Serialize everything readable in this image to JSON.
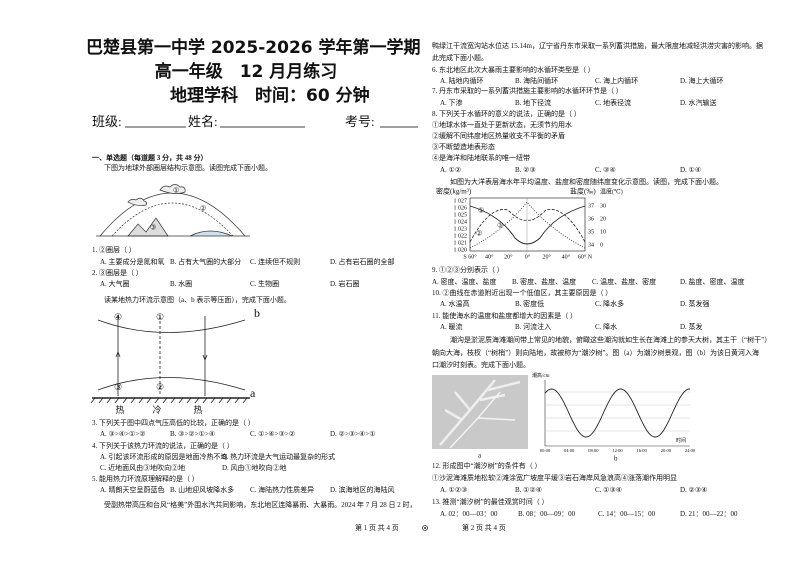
{
  "header": {
    "school_term": "巴楚县第一中学 2025-2026 学年第一学期",
    "grade": "高一年级　12 月月练习",
    "subject": "地理学科",
    "time": "时间：60 分钟",
    "class_label": "班级:",
    "name_label": "姓名:",
    "id_label": "考号:"
  },
  "section": {
    "title": "一、单选题（每道题 3 分，共 48 分）"
  },
  "passages": [
    {
      "lines": [
        "下图为地球外部圈层结构示意图。读图完成下面小题。"
      ]
    },
    {
      "lines": [
        "读某地热力环流示意图（a、b 表示等压面），完成下面小题。"
      ]
    },
    {
      "lines": [
        "受副热带高压和台风“格美”外围水汽共同影响，东北地区连降暴雨、大暴雨。2024 年 7 月 28 日 2 时，",
        "鸭绿江干流宽沟站水位达 15.14m，辽宁省丹东市采取一系列蓄洪措施，最大限度地减轻洪涝灾害的影响。据",
        "此完成下面小题。"
      ]
    },
    {
      "lines": [
        "如图为大洋表层海水年平均温度、盐度和密度随纬度变化示意图。读图，完成下面小题。"
      ]
    },
    {
      "lines": [
        "潮沟是淤泥质海滩潮间带上常见的地貌，俯瞰这些潮沟就如生长在海滩上的参天大树，其主干（“树干”）",
        "朝向大海，枝杈（“树梢”）则向陆地，故被称为“潮汐树”。图（a）为潮汐树景观，图（b）为该日黄河入海",
        "口潮汐时刻表。完成下面小题。"
      ]
    }
  ],
  "questions": [
    {
      "stem": "1. ②圈层（ ）",
      "options": [
        "A. 主要成分是氮和氧",
        "B. 占有大气圈的大部分",
        "C. 连续但不规则",
        "D. 占有岩石圈的全部"
      ]
    },
    {
      "stem": "2. ③圈层是（ ）",
      "options": [
        "A. 大气圈",
        "B. 水圈",
        "C. 生物圈",
        "D. 岩石圈"
      ]
    },
    {
      "stem": "3. 下列关于图中四点气压高低的比较，正确的是（ ）",
      "options": [
        "A. ③>④>①>②",
        "B. ③>②>①>④",
        "C. ①>④>③>②",
        "D. ②>③>④>①"
      ]
    },
    {
      "stem": "4. 下列关于该热力环流的说法，正确的是（ ）",
      "options": [
        "A. 引起该环流形成的原因是地面冷热不均",
        "B. 热力环流是大气运动最复杂的形式",
        "C. 近地面风由③地吹向②地",
        "D. 风由①地吹向②地"
      ]
    },
    {
      "stem": "5. 能用热力环流原理解释的是（ ）",
      "options": [
        "A. 晴朗天空呈蔚蓝色",
        "B. 山地迎风坡降水多",
        "C. 海陆热力性质差异",
        "D. 滨海地区的海陆风"
      ]
    },
    {
      "stem": "6. 东北地区此次大暴雨主要影响的水循环类型是（ ）",
      "options": [
        "A. 陆地内循环",
        "B. 海陆间循环",
        "C. 海上内循环",
        "D. 海上大循环"
      ]
    },
    {
      "stem": "7. 丹东市采取的一系列蓄洪措施主要影响的水循环环节是（ ）",
      "options": [
        "A. 下渗",
        "B. 地下径流",
        "C. 地表径流",
        "D. 水汽输送"
      ]
    },
    {
      "stem": "8. 下列关于水循环的意义的说法，正确的是（ ）",
      "statements": [
        "①地球水体一直处于更新状态，无须节约用水",
        "②缓解不同纬度地区热量收支不平衡的矛盾",
        "③不断塑造地表形态",
        "④是海洋和陆地联系的唯一纽带"
      ],
      "options": [
        "A. ①②",
        "B. ②③",
        "C. ③④",
        "D. ①④"
      ]
    },
    {
      "stem": "9. ①②③分别表示（ ）",
      "options": [
        "A. 密度、温度、盐度",
        "B. 密度、盐度、温度",
        "C. 温度、盐度、密度",
        "D. 盐度、密度、温度"
      ]
    },
    {
      "stem": "10. ②曲线在赤道附近出现一个低值区，其主要原因是（ ）",
      "options": [
        "A. 水温高",
        "B. 密度低",
        "C. 降水多",
        "D. 蒸发强"
      ]
    },
    {
      "stem": "11. 能使海水的温度和盐度都增大的因素是（ ）",
      "options": [
        "A. 暖流",
        "B. 河流注入",
        "C. 降水",
        "D. 蒸发"
      ]
    },
    {
      "stem": "12. 形成图中“潮汐树”的条件有（ ）",
      "statements": [
        "①沙泥海滩质地松软②滩涂宽广坡度平缓③岩石海岸风急浪高④涨落潮作用明显"
      ],
      "options": [
        "A. ①②③",
        "B. ①②④",
        "C. ①③④",
        "D. ②③④"
      ]
    },
    {
      "stem": "13. 推测“潮汐树”的最佳观赏时间（ ）",
      "options": [
        "A. 02：00—03：00",
        "B. 08：00—09：00",
        "C. 14：00—15：00",
        "D. 21：00—22：00"
      ]
    }
  ],
  "figures": {
    "layers": {
      "labels": [
        "①",
        "②",
        "③"
      ]
    },
    "circulation": {
      "upper": [
        "④",
        "①",
        "b"
      ],
      "lower": [
        "③",
        "②",
        "a"
      ],
      "ground": [
        "热",
        "冷",
        "热"
      ]
    },
    "ocean": {
      "left_title": "密度(kg/m³)",
      "salinity_title": "盐度(‰)",
      "temp_title": "温度(℃)",
      "density_ticks": [
        "1 027",
        "1 026",
        "1 025",
        "1 024",
        "1 023",
        "1 022",
        "1 021",
        "1 020"
      ],
      "salinity_ticks": [
        "37",
        "36",
        "35",
        "34"
      ],
      "temp_ticks": [
        "30",
        "20",
        "10",
        "0"
      ],
      "lat_ticks": [
        "S 60°",
        "40°",
        "20°",
        "0°",
        "20°",
        "40°",
        "60° N"
      ],
      "curve_labels": [
        "①",
        "②",
        "③"
      ]
    },
    "tide": {
      "photo_label": "a",
      "chart_label": "b",
      "y_title": "潮高/cm",
      "x_title": "时间",
      "time_ticks": [
        "00:00",
        "04:00",
        "08:00",
        "12:00",
        "16:00",
        "20:00",
        "24:00"
      ]
    }
  },
  "footer": {
    "page_left": "第 1 页 共 4 页",
    "page_right": "第 2 页 共 4 页"
  }
}
